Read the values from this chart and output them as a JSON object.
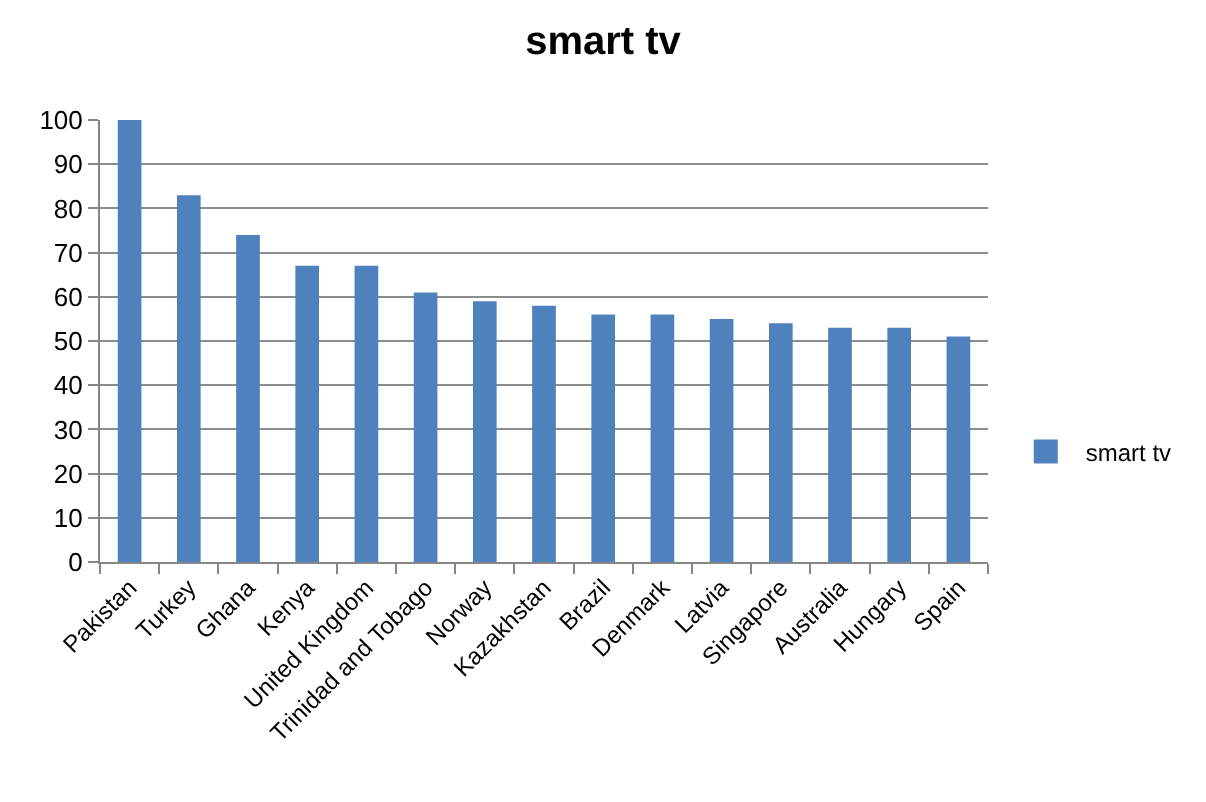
{
  "chart_data": {
    "type": "bar",
    "title": "smart tv",
    "categories": [
      "Pakistan",
      "Turkey",
      "Ghana",
      "Kenya",
      "United Kingdom",
      "Trinidad and Tobago",
      "Norway",
      "Kazakhstan",
      "Brazil",
      "Denmark",
      "Latvia",
      "Singapore",
      "Australia",
      "Hungary",
      "Spain"
    ],
    "series": [
      {
        "name": "smart tv",
        "color": "#4f81bd",
        "values": [
          100,
          83,
          74,
          67,
          67,
          61,
          59,
          58,
          56,
          56,
          55,
          54,
          53,
          53,
          51
        ]
      }
    ],
    "ylim": [
      0,
      100
    ],
    "yticks": [
      0,
      10,
      20,
      30,
      40,
      50,
      60,
      70,
      80,
      90,
      100
    ],
    "grid": "y",
    "legend": "right"
  }
}
